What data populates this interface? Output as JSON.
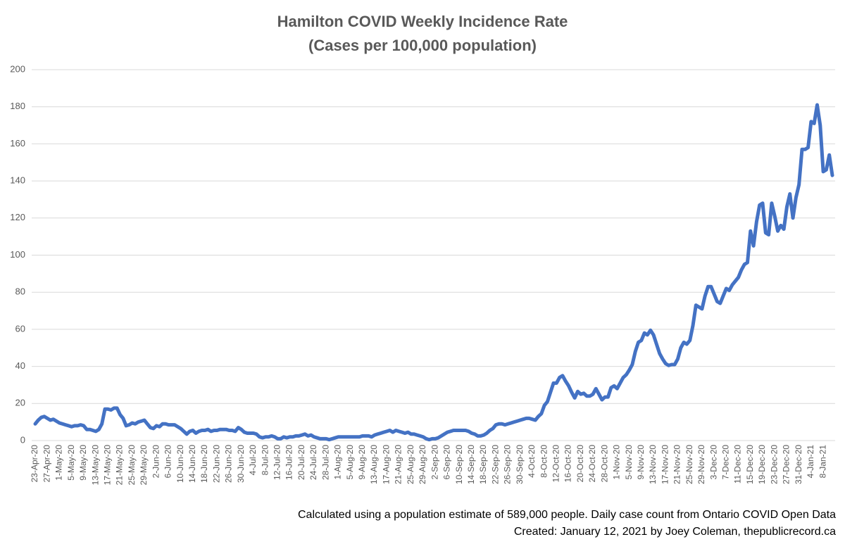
{
  "chart_data": {
    "type": "line",
    "title": [
      "Hamilton COVID Weekly Incidence Rate",
      "(Cases per 100,000 population)"
    ],
    "notes": [
      "Calculated using a population estimate of 589,000 people. Daily case count from Ontario COVID Open Data",
      "Created: January 12, 2021 by Joey Coleman, thepublicrecord.ca"
    ],
    "categories": [
      "23-Apr-20",
      null,
      null,
      null,
      "27-Apr-20",
      null,
      null,
      null,
      "1-May-20",
      null,
      null,
      null,
      "5-May-20",
      null,
      null,
      null,
      "9-May-20",
      null,
      null,
      null,
      "13-May-20",
      null,
      null,
      null,
      "17-May-20",
      null,
      null,
      null,
      "21-May-20",
      null,
      null,
      null,
      "25-May-20",
      null,
      null,
      null,
      "29-May-20",
      null,
      null,
      null,
      "2-Jun-20",
      null,
      null,
      null,
      "6-Jun-20",
      null,
      null,
      null,
      "10-Jun-20",
      null,
      null,
      null,
      "14-Jun-20",
      null,
      null,
      null,
      "18-Jun-20",
      null,
      null,
      null,
      "22-Jun-20",
      null,
      null,
      null,
      "26-Jun-20",
      null,
      null,
      null,
      "30-Jun-20",
      null,
      null,
      null,
      "4-Jul-20",
      null,
      null,
      null,
      "8-Jul-20",
      null,
      null,
      null,
      "12-Jul-20",
      null,
      null,
      null,
      "16-Jul-20",
      null,
      null,
      null,
      "20-Jul-20",
      null,
      null,
      null,
      "24-Jul-20",
      null,
      null,
      null,
      "28-Jul-20",
      null,
      null,
      null,
      "1-Aug-20",
      null,
      null,
      null,
      "5-Aug-20",
      null,
      null,
      null,
      "9-Aug-20",
      null,
      null,
      null,
      "13-Aug-20",
      null,
      null,
      null,
      "17-Aug-20",
      null,
      null,
      null,
      "21-Aug-20",
      null,
      null,
      null,
      "25-Aug-20",
      null,
      null,
      null,
      "29-Aug-20",
      null,
      null,
      null,
      "2-Sep-20",
      null,
      null,
      null,
      "6-Sep-20",
      null,
      null,
      null,
      "10-Sep-20",
      null,
      null,
      null,
      "14-Sep-20",
      null,
      null,
      null,
      "18-Sep-20",
      null,
      null,
      null,
      "22-Sep-20",
      null,
      null,
      null,
      "26-Sep-20",
      null,
      null,
      null,
      "30-Sep-20",
      null,
      null,
      null,
      "4-Oct-20",
      null,
      null,
      null,
      "8-Oct-20",
      null,
      null,
      null,
      "12-Oct-20",
      null,
      null,
      null,
      "16-Oct-20",
      null,
      null,
      null,
      "20-Oct-20",
      null,
      null,
      null,
      "24-Oct-20",
      null,
      null,
      null,
      "28-Oct-20",
      null,
      null,
      null,
      "1-Nov-20",
      null,
      null,
      null,
      "5-Nov-20",
      null,
      null,
      null,
      "9-Nov-20",
      null,
      null,
      null,
      "13-Nov-20",
      null,
      null,
      null,
      "17-Nov-20",
      null,
      null,
      null,
      "21-Nov-20",
      null,
      null,
      null,
      "25-Nov-20",
      null,
      null,
      null,
      "29-Nov-20",
      null,
      null,
      null,
      "3-Dec-20",
      null,
      null,
      null,
      "7-Dec-20",
      null,
      null,
      null,
      "11-Dec-20",
      null,
      null,
      null,
      "15-Dec-20",
      null,
      null,
      null,
      "19-Dec-20",
      null,
      null,
      null,
      "23-Dec-20",
      null,
      null,
      null,
      "27-Dec-20",
      null,
      null,
      null,
      "31-Dec-20",
      null,
      null,
      null,
      "4-Jan-21",
      null,
      null,
      null,
      "8-Jan-21",
      null,
      null,
      null
    ],
    "values": [
      9,
      11,
      12.5,
      13,
      12,
      11,
      11.5,
      10.5,
      9.5,
      9,
      8.5,
      8,
      7.5,
      8,
      8,
      8.5,
      8,
      6,
      6,
      5.5,
      5,
      6,
      9,
      17,
      17,
      16.5,
      17.5,
      17.5,
      14,
      12,
      8,
      8.5,
      9.5,
      9,
      10,
      10.5,
      11,
      9,
      7,
      6.5,
      8,
      7.5,
      9,
      9,
      8.5,
      8.5,
      8.5,
      7.5,
      6.5,
      5,
      3.5,
      5,
      5.5,
      4,
      5,
      5.5,
      5.5,
      6,
      5,
      5.5,
      5.5,
      6,
      6,
      6,
      5.5,
      5.5,
      5,
      7,
      6,
      4.5,
      4,
      4,
      4,
      3.5,
      2,
      1.5,
      2,
      2,
      2.5,
      2,
      1,
      1,
      2,
      1.5,
      2,
      2,
      2.5,
      2.5,
      3,
      3.5,
      2.5,
      3,
      2,
      1.5,
      1,
      1,
      1,
      0.5,
      1,
      1.5,
      2,
      2,
      2,
      2,
      2,
      2,
      2,
      2,
      2.5,
      2.5,
      2.5,
      2,
      3,
      3.5,
      4,
      4.5,
      5,
      5.5,
      4.5,
      5.5,
      5,
      4.5,
      4,
      4.5,
      3.5,
      3.5,
      3,
      2.5,
      2,
      1,
      0.5,
      1,
      1,
      1.5,
      2.5,
      3.5,
      4.5,
      5,
      5.5,
      5.5,
      5.5,
      5.5,
      5.5,
      5,
      4,
      3.5,
      2.5,
      2.5,
      3,
      4,
      5.5,
      6.5,
      8.5,
      9,
      9,
      8.5,
      9,
      9.5,
      10,
      10.5,
      11,
      11.5,
      12,
      12,
      11.5,
      11,
      13,
      14.5,
      19,
      21,
      26,
      31,
      31,
      34,
      35,
      32,
      29.5,
      26,
      23,
      26.5,
      25,
      25.5,
      24,
      24,
      25,
      28,
      25,
      22,
      23.5,
      23.5,
      28.5,
      29.5,
      28,
      31,
      34,
      35.5,
      38,
      41,
      48,
      53,
      54,
      58,
      57,
      59.5,
      57,
      52,
      47,
      44,
      41.5,
      40.5,
      41,
      41,
      44,
      50,
      53,
      52,
      54,
      62,
      73,
      72,
      71,
      78,
      83,
      83,
      79,
      75,
      74,
      78,
      82,
      81,
      84,
      86,
      88,
      92,
      95,
      96,
      113,
      105,
      118,
      127,
      128,
      112,
      111,
      128,
      121,
      113,
      116,
      114,
      126,
      133,
      120,
      131,
      138,
      157,
      157,
      158,
      172,
      171,
      181,
      170,
      145,
      146,
      154,
      143
    ],
    "color": "#4472c4",
    "ylim": [
      0,
      200
    ],
    "yticks": [
      0,
      20,
      40,
      60,
      80,
      100,
      120,
      140,
      160,
      180,
      200
    ],
    "grid": true
  }
}
